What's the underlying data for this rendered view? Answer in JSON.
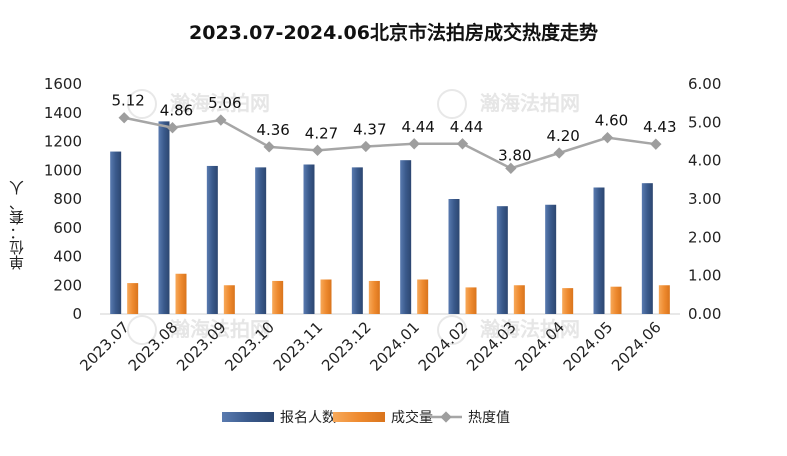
{
  "chart_data": {
    "type": "bar",
    "title": "2023.07-2024.06北京市法拍房成交热度走势",
    "ylabel": "单位：套、人",
    "ylim": [
      0,
      1600
    ],
    "y2lim": [
      0,
      6
    ],
    "grid": false,
    "legend": "bottom",
    "categories": [
      "2023.07",
      "2023.08",
      "2023.09",
      "2023.10",
      "2023.11",
      "2023.12",
      "2024.01",
      "2024.02",
      "2024.03",
      "2024.04",
      "2024.05",
      "2024.06"
    ],
    "y_ticks": [
      "0",
      "200",
      "400",
      "600",
      "800",
      "1000",
      "1200",
      "1400",
      "1600"
    ],
    "y2_ticks": [
      "0.00",
      "1.00",
      "2.00",
      "3.00",
      "4.00",
      "5.00",
      "6.00"
    ],
    "series": [
      {
        "name": "报名人数",
        "type": "bar",
        "axis": "left",
        "color": "#3a5a8c",
        "values": [
          1130,
          1340,
          1030,
          1020,
          1040,
          1020,
          1070,
          800,
          750,
          760,
          880,
          910
        ]
      },
      {
        "name": "成交量",
        "type": "bar",
        "axis": "left",
        "color": "#ee8a2f",
        "values": [
          215,
          280,
          200,
          230,
          240,
          230,
          240,
          185,
          200,
          180,
          190,
          200
        ]
      },
      {
        "name": "热度值",
        "type": "line",
        "axis": "right",
        "color": "#a6a6a6",
        "values": [
          5.12,
          4.86,
          5.06,
          4.36,
          4.27,
          4.37,
          4.44,
          4.44,
          3.8,
          4.2,
          4.6,
          4.43
        ],
        "labels": [
          "5.12",
          "4.86",
          "5.06",
          "4.36",
          "4.27",
          "4.37",
          "4.44",
          "4.44",
          "3.80",
          "4.20",
          "4.60",
          "4.43"
        ]
      }
    ]
  },
  "watermark": "瀚海法拍网"
}
